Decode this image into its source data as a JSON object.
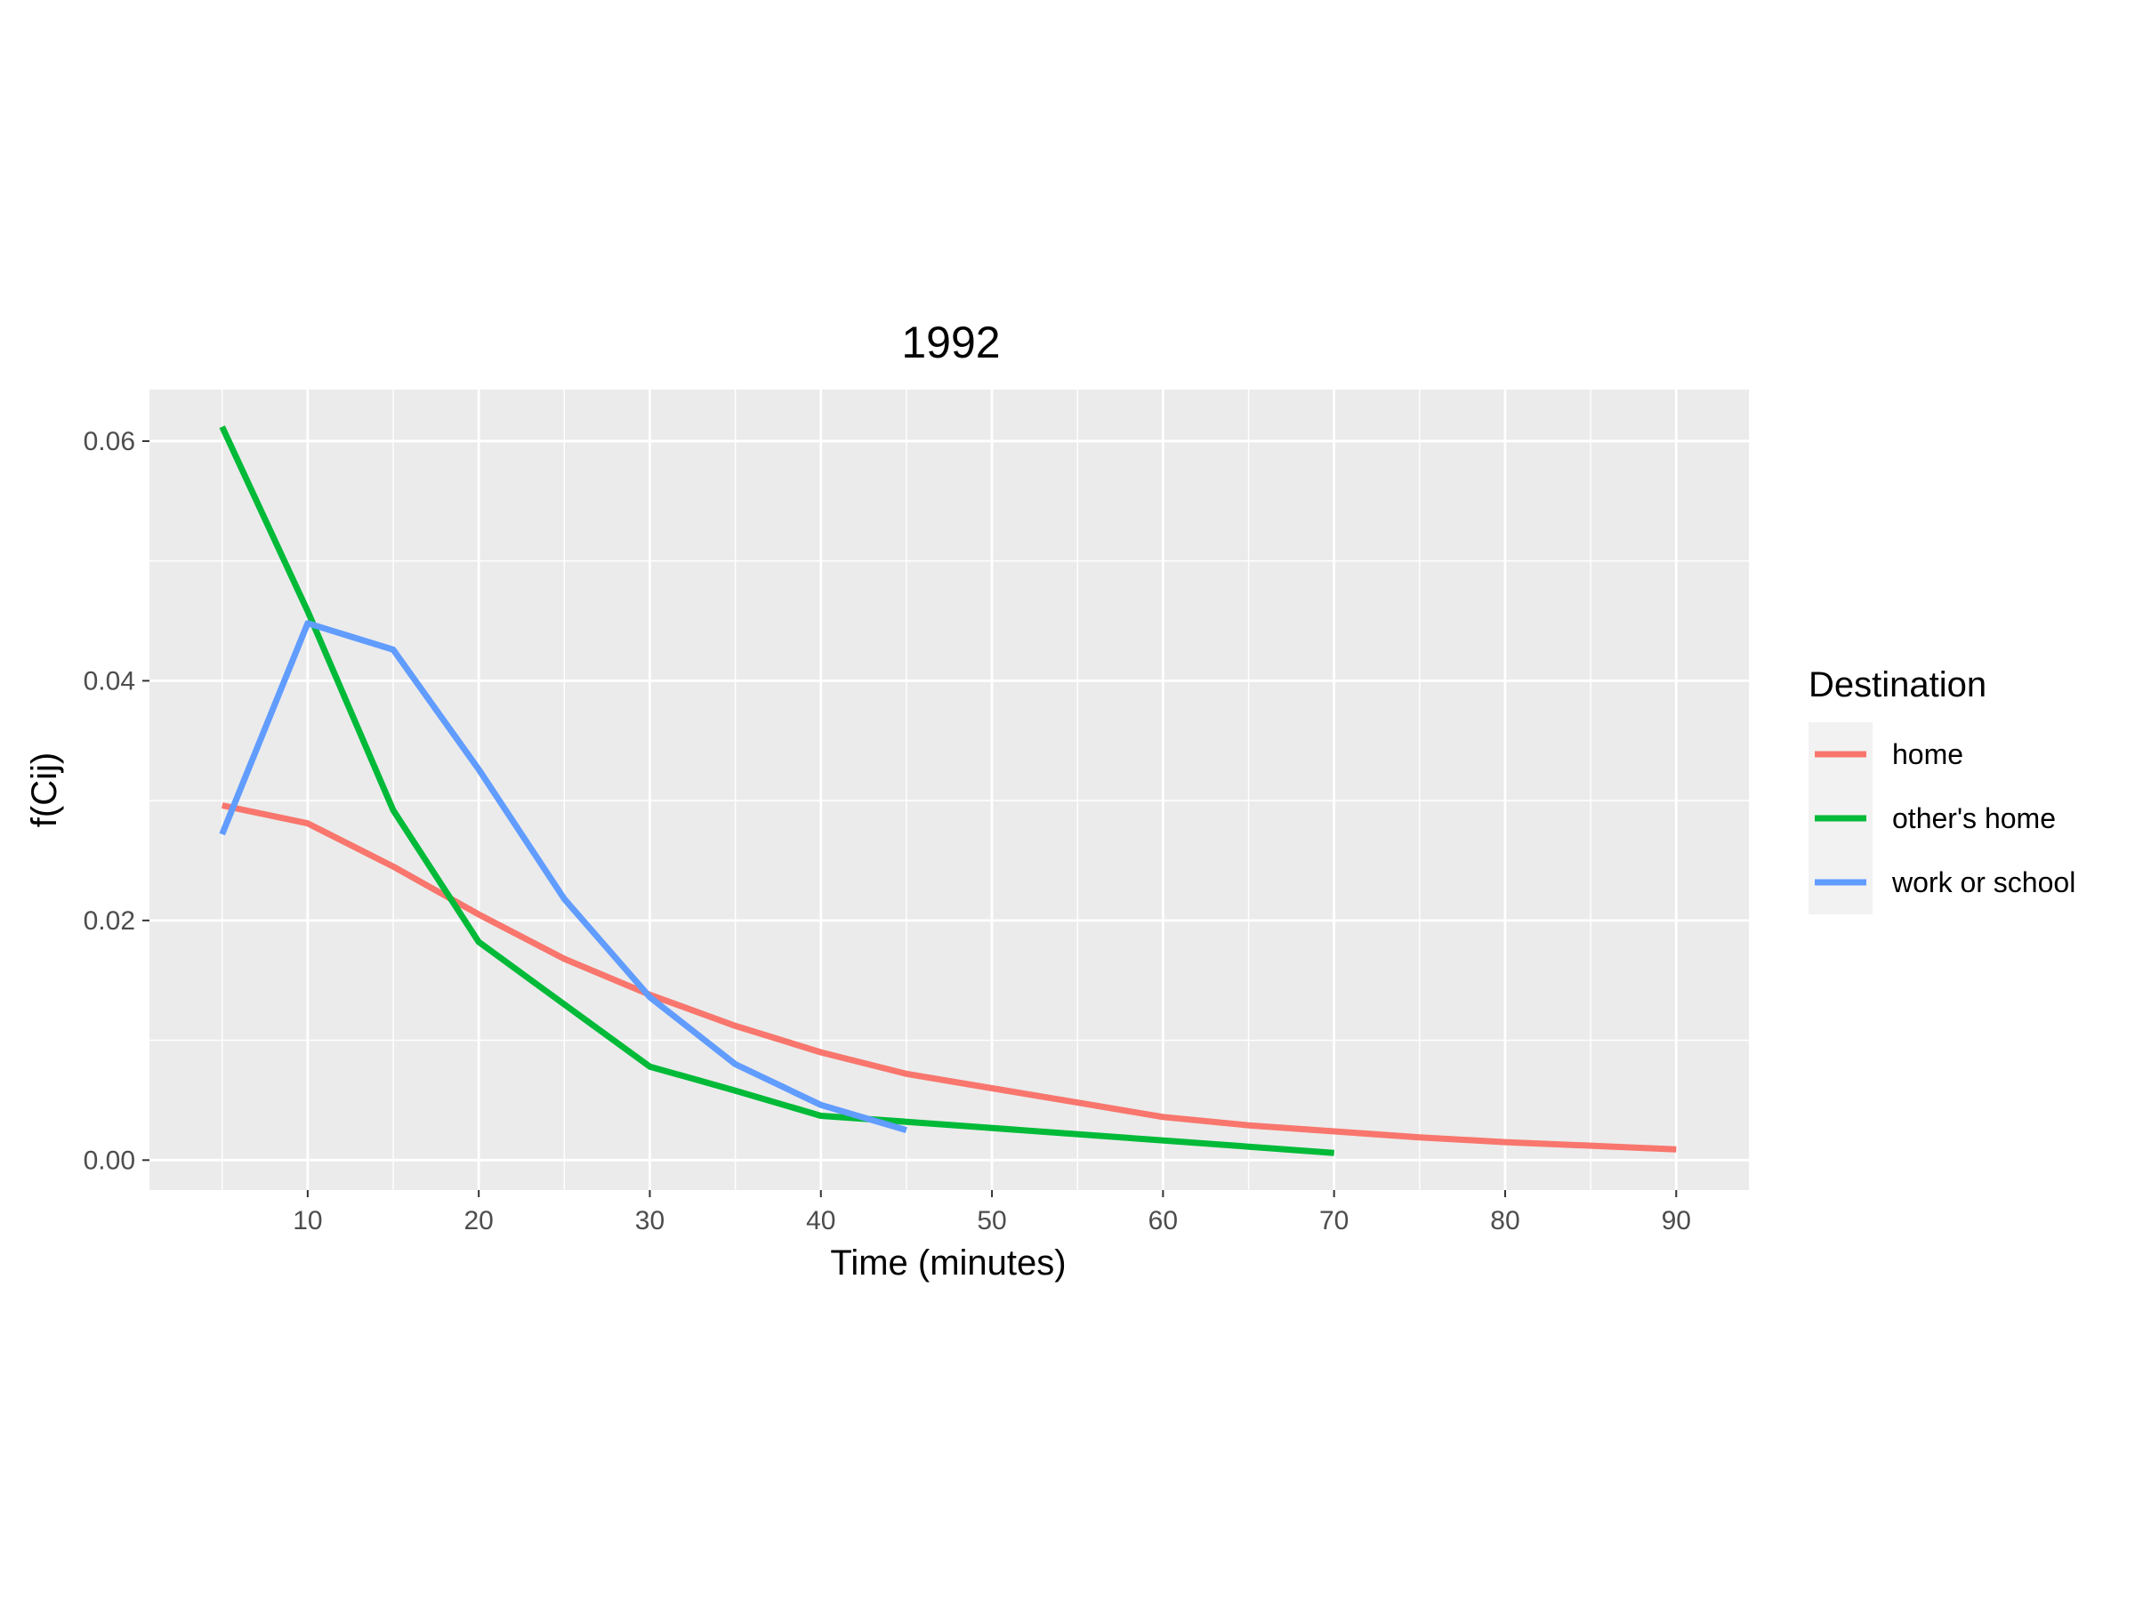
{
  "chart_data": {
    "type": "line",
    "title": "1992",
    "xlabel": "Time (minutes)",
    "ylabel": "f(Cij)",
    "xlim": [
      0.75,
      94.25
    ],
    "ylim": [
      -0.0025,
      0.0643
    ],
    "x_ticks": [
      10,
      20,
      30,
      40,
      50,
      60,
      70,
      80,
      90
    ],
    "x_tick_labels": [
      "10",
      "20",
      "30",
      "40",
      "50",
      "60",
      "70",
      "80",
      "90"
    ],
    "y_ticks": [
      0.0,
      0.02,
      0.04,
      0.06
    ],
    "y_tick_labels": [
      "0.00",
      "0.02",
      "0.04",
      "0.06"
    ],
    "grid": true,
    "legend": {
      "title": "Destination",
      "position": "right"
    },
    "series": [
      {
        "name": "home",
        "color": "#F8766D",
        "x": [
          5,
          10,
          15,
          20,
          25,
          30,
          35,
          40,
          45,
          50,
          55,
          60,
          65,
          70,
          75,
          80,
          85,
          90
        ],
        "y": [
          0.0296,
          0.0281,
          0.0245,
          0.0205,
          0.0168,
          0.0138,
          0.0112,
          0.009,
          0.0072,
          0.006,
          0.0048,
          0.0036,
          0.0029,
          0.0024,
          0.0019,
          0.0015,
          0.0012,
          0.0009
        ]
      },
      {
        "name": "other's home",
        "color": "#00BA38",
        "x": [
          5,
          10,
          15,
          20,
          25,
          30,
          35,
          40,
          45,
          70
        ],
        "y": [
          0.0612,
          0.0458,
          0.0292,
          0.0182,
          0.013,
          0.0078,
          0.0058,
          0.0037,
          0.0032,
          0.0006
        ]
      },
      {
        "name": "work or school",
        "color": "#619CFF",
        "x": [
          5,
          10,
          15,
          20,
          25,
          30,
          35,
          40,
          45
        ],
        "y": [
          0.0272,
          0.0448,
          0.0426,
          0.0326,
          0.0218,
          0.0136,
          0.008,
          0.0046,
          0.0025
        ]
      }
    ]
  }
}
